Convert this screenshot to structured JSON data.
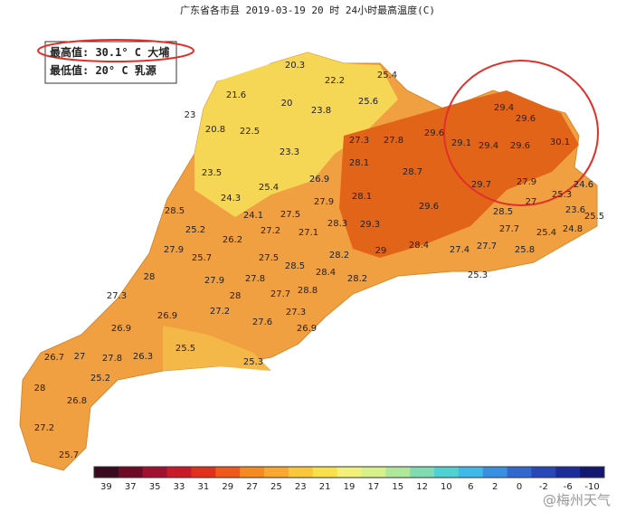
{
  "title": "广东省各市县 2019-03-19 20 时 24小时最高温度(C)",
  "info": {
    "max": "最高值: 30.1° C 大埔",
    "min": "最低值: 20° C 乳源"
  },
  "stations": [
    20.3,
    22.2,
    25.4,
    21.6,
    20,
    23.8,
    25.6,
    23,
    20.8,
    22.5,
    27.3,
    27.8,
    29.6,
    29.4,
    29.6,
    29.1,
    29.4,
    29.6,
    30.1,
    23.3,
    28.1,
    28.7,
    23.5,
    25.4,
    26.9,
    27.9,
    25.3,
    24.6,
    29.7,
    24.3,
    28.1,
    27.9,
    27,
    23.6,
    25.5,
    28.5,
    24.1,
    27.5,
    28.3,
    29.3,
    29.6,
    28.5,
    25.2,
    26.2,
    27.2,
    27.1,
    27.7,
    25.4,
    24.8,
    27.9,
    28.2,
    29,
    28.4,
    27.4,
    27.7,
    25.8,
    25.7,
    27.5,
    28.5,
    28.4,
    28,
    27.9,
    27.8,
    28.2,
    25.3,
    27.3,
    28,
    27.7,
    28.8,
    27.2,
    27.3,
    26.9,
    27.6,
    26.9,
    26.9,
    25.5,
    26.7,
    27,
    27.8,
    26.3,
    25.3,
    25.2,
    28,
    26.8,
    27.2,
    25.7
  ],
  "colorbar": {
    "ticks": [
      39,
      37,
      35,
      33,
      31,
      29,
      27,
      25,
      23,
      21,
      19,
      17,
      15,
      12,
      10,
      6,
      2,
      0,
      -2,
      -6,
      -10
    ],
    "colors": [
      "#3a0a1e",
      "#6e0a28",
      "#a01030",
      "#c81a28",
      "#e0301e",
      "#ee5a1a",
      "#f58a22",
      "#f8a830",
      "#f9c83a",
      "#f8e04a",
      "#f2f07a",
      "#d8f08a",
      "#b0e89a",
      "#80dcb0",
      "#50d0d0",
      "#40b8e8",
      "#3a90e0",
      "#3068d0",
      "#2848b8",
      "#1c2c98",
      "#101870"
    ]
  },
  "watermark": "@梅州天气"
}
